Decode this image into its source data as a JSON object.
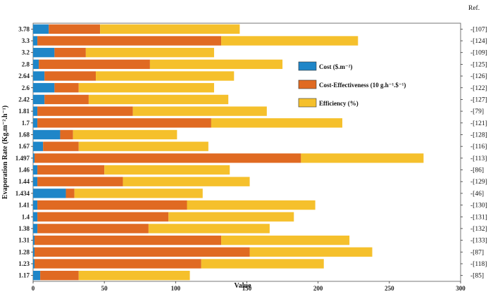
{
  "chart_data": {
    "type": "bar",
    "orientation": "horizontal",
    "stacked": true,
    "xlabel": "Value",
    "ylabel": "Evaporation Rate (Kg.m⁻².h⁻¹)",
    "xlim": [
      0,
      300
    ],
    "xticks": [
      0,
      50,
      100,
      150,
      200,
      250,
      300
    ],
    "ref_header": "Ref.",
    "categories": [
      "3.78",
      "3.3",
      "3.2",
      "2.8",
      "2.64",
      "2.6",
      "2.42",
      "1.81",
      "1.7",
      "1.68",
      "1.67",
      "1.497",
      "1.46",
      "1.44",
      "1.434",
      "1.41",
      "1.4",
      "1.38",
      "1.31",
      "1.28",
      "1.23",
      "1.17"
    ],
    "refs": [
      "-[107]",
      "-[124]",
      "-[109]",
      "-[125]",
      "-[126]",
      "-[122]",
      "-[127]",
      "-[79]",
      "-[121]",
      "-[128]",
      "-[116]",
      "-[113]",
      "-[86]",
      "-[129]",
      "-[46]",
      "-[130]",
      "-[131]",
      "-[132]",
      "-[133]",
      "-[87]",
      "-[118]",
      "-[85]"
    ],
    "series": [
      {
        "name": "Cost ($.m⁻²)",
        "color": "#1f86c8",
        "values": [
          11,
          3,
          15,
          4,
          8,
          15,
          8,
          3,
          3,
          19,
          7,
          1,
          3,
          3,
          23,
          3,
          3,
          3,
          1,
          1,
          1,
          5
        ]
      },
      {
        "name": "Cost-Effectiveness (10 g.h⁻¹.$⁻¹)",
        "color": "#e06a22",
        "values": [
          36,
          129,
          22,
          78,
          36,
          17,
          31,
          67,
          122,
          9,
          25,
          187,
          47,
          60,
          6,
          105,
          92,
          78,
          131,
          151,
          117,
          27
        ]
      },
      {
        "name": "Efficiency (%)",
        "color": "#f5c02c",
        "values": [
          98,
          96,
          90,
          93,
          97,
          95,
          98,
          94,
          92,
          73,
          91,
          86,
          88,
          89,
          90,
          90,
          88,
          85,
          90,
          86,
          86,
          78
        ]
      }
    ]
  }
}
